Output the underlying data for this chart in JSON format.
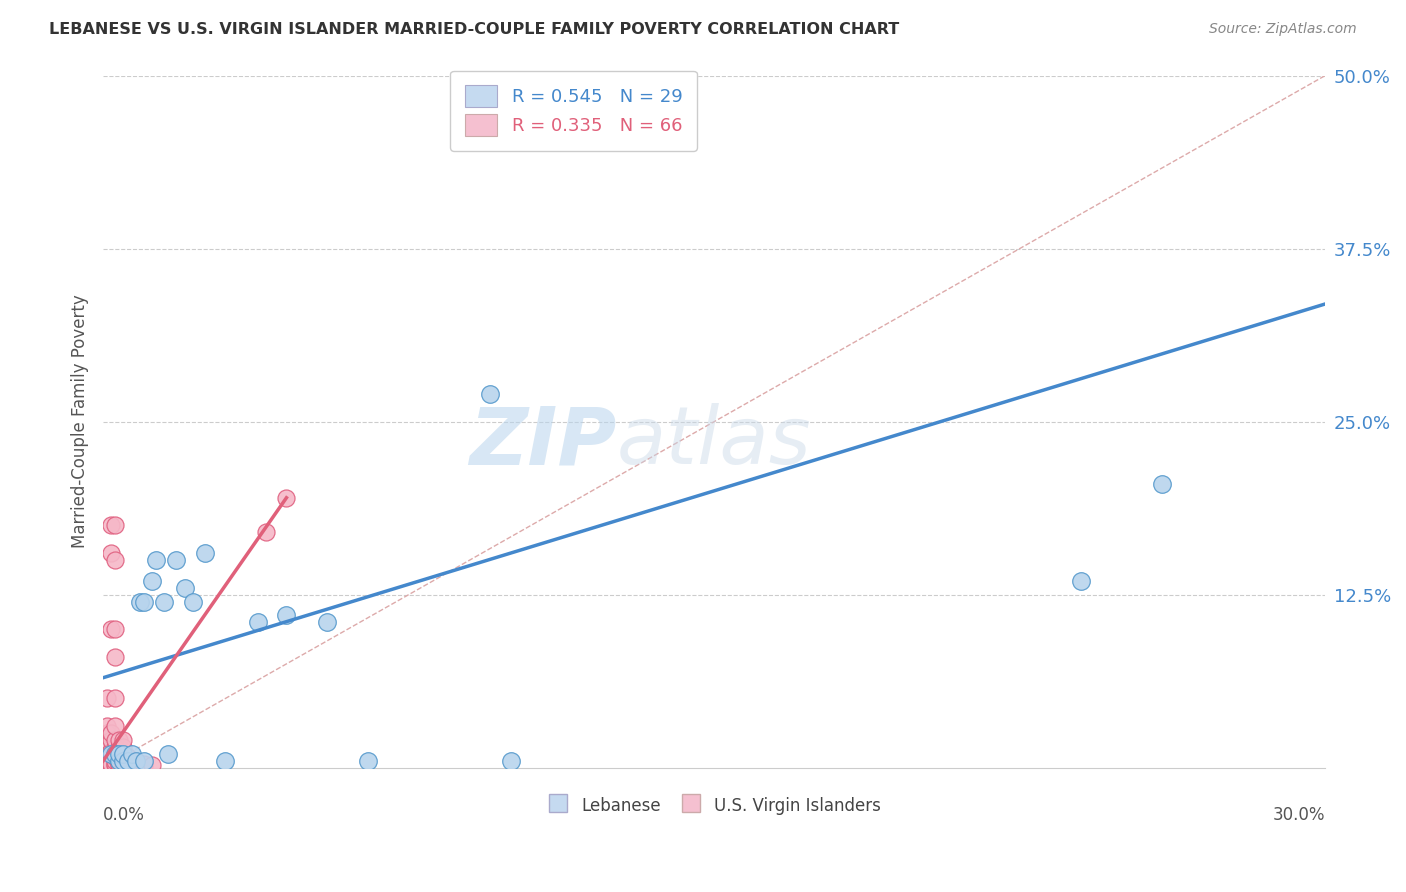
{
  "title": "LEBANESE VS U.S. VIRGIN ISLANDER MARRIED-COUPLE FAMILY POVERTY CORRELATION CHART",
  "source": "Source: ZipAtlas.com",
  "ylabel": "Married-Couple Family Poverty",
  "ylabels": [
    "12.5%",
    "25.0%",
    "37.5%",
    "50.0%"
  ],
  "yticks": [
    0.125,
    0.25,
    0.375,
    0.5
  ],
  "xlim": [
    0,
    0.3
  ],
  "ylim": [
    0,
    0.5
  ],
  "R_lebanese": 0.545,
  "N_lebanese": 29,
  "R_usvi": 0.335,
  "N_usvi": 66,
  "color_lebanese_fill": "#b8d4ed",
  "color_usvi_fill": "#f5b8c8",
  "color_lebanese_edge": "#5599cc",
  "color_usvi_edge": "#e06080",
  "color_lebanese_line": "#4488cc",
  "color_usvi_line": "#e0607a",
  "color_legend_blue_fill": "#c5daf0",
  "color_legend_pink_fill": "#f5c0d0",
  "watermark_zip": "ZIP",
  "watermark_atlas": "atlas",
  "lebanese_x": [
    0.002,
    0.003,
    0.004,
    0.004,
    0.005,
    0.005,
    0.006,
    0.007,
    0.008,
    0.009,
    0.01,
    0.01,
    0.012,
    0.013,
    0.015,
    0.016,
    0.018,
    0.02,
    0.022,
    0.025,
    0.03,
    0.038,
    0.045,
    0.055,
    0.065,
    0.095,
    0.1,
    0.24,
    0.26
  ],
  "lebanese_y": [
    0.01,
    0.01,
    0.005,
    0.01,
    0.005,
    0.01,
    0.005,
    0.01,
    0.005,
    0.12,
    0.005,
    0.12,
    0.135,
    0.15,
    0.12,
    0.01,
    0.15,
    0.13,
    0.12,
    0.155,
    0.005,
    0.105,
    0.11,
    0.105,
    0.005,
    0.27,
    0.005,
    0.135,
    0.205
  ],
  "usvi_x": [
    0.001,
    0.001,
    0.001,
    0.001,
    0.001,
    0.001,
    0.001,
    0.001,
    0.001,
    0.001,
    0.001,
    0.001,
    0.001,
    0.002,
    0.002,
    0.002,
    0.002,
    0.002,
    0.002,
    0.002,
    0.002,
    0.002,
    0.002,
    0.002,
    0.003,
    0.003,
    0.003,
    0.003,
    0.003,
    0.003,
    0.003,
    0.003,
    0.003,
    0.003,
    0.003,
    0.003,
    0.003,
    0.004,
    0.004,
    0.004,
    0.004,
    0.004,
    0.004,
    0.004,
    0.005,
    0.005,
    0.005,
    0.005,
    0.005,
    0.005,
    0.005,
    0.006,
    0.006,
    0.006,
    0.006,
    0.007,
    0.007,
    0.007,
    0.008,
    0.008,
    0.008,
    0.01,
    0.01,
    0.012,
    0.04,
    0.045
  ],
  "usvi_y": [
    0.002,
    0.003,
    0.004,
    0.005,
    0.006,
    0.008,
    0.01,
    0.012,
    0.015,
    0.02,
    0.025,
    0.03,
    0.05,
    0.002,
    0.005,
    0.008,
    0.012,
    0.02,
    0.025,
    0.1,
    0.155,
    0.175,
    0.002,
    0.003,
    0.002,
    0.003,
    0.005,
    0.008,
    0.01,
    0.015,
    0.02,
    0.03,
    0.05,
    0.08,
    0.1,
    0.15,
    0.175,
    0.002,
    0.003,
    0.005,
    0.008,
    0.01,
    0.015,
    0.02,
    0.002,
    0.003,
    0.005,
    0.008,
    0.01,
    0.015,
    0.02,
    0.002,
    0.003,
    0.005,
    0.008,
    0.002,
    0.003,
    0.005,
    0.002,
    0.003,
    0.005,
    0.002,
    0.003,
    0.002,
    0.17,
    0.195
  ],
  "leb_line_x0": 0.0,
  "leb_line_y0": 0.065,
  "leb_line_x1": 0.3,
  "leb_line_y1": 0.335,
  "usvi_line_x0": 0.0,
  "usvi_line_y0": 0.005,
  "usvi_line_x1": 0.045,
  "usvi_line_y1": 0.195
}
